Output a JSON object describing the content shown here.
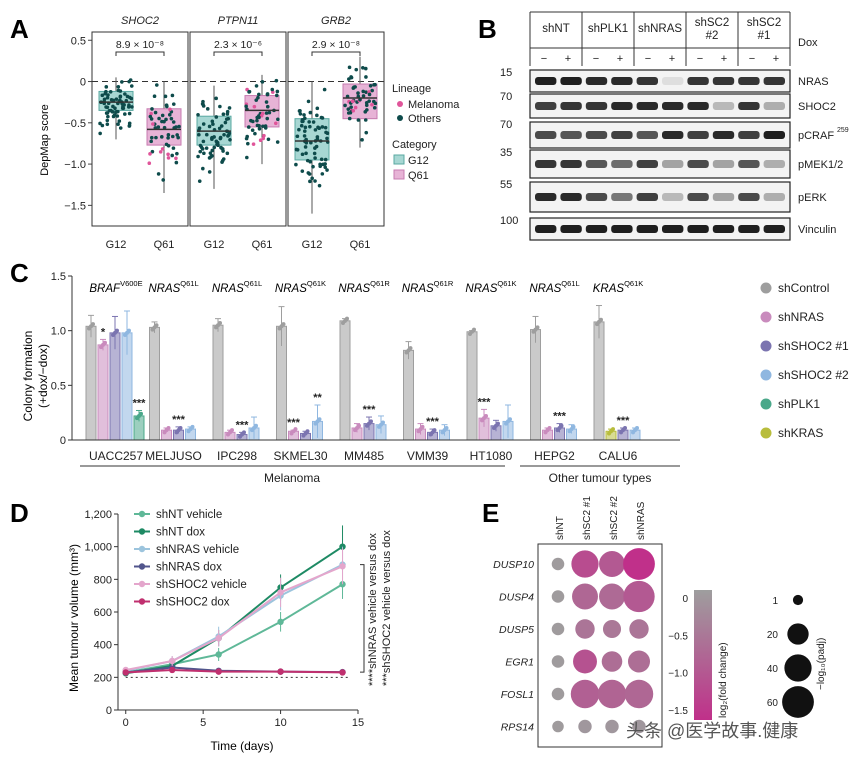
{
  "colors": {
    "g12": "#a7d7d3",
    "g12_stroke": "#5aa8a2",
    "q61": "#e7b3d6",
    "q61_stroke": "#c77bb0",
    "dot_other": "#0e4b4b",
    "dot_melanoma": "#e0559a",
    "shControl": "#9e9e9e",
    "shNRAS": "#c98bbd",
    "shSHOC2_1": "#7b74b0",
    "shSHOC2_2": "#8fb7e0",
    "shPLK1": "#4aa88a",
    "shKRAS": "#b8bd3c",
    "shNT_vehicle": "#5fb898",
    "shNT_dox": "#1e8a64",
    "shNRAS_vehicle": "#9cc4dd",
    "shNRAS_dox": "#51558c",
    "shSHOC2_vehicle": "#e4a6cc",
    "shSHOC2_dox": "#c0306f",
    "heat_top": "#9e9e9e",
    "heat_bottom": "#c0308a"
  },
  "panel_labels": {
    "a": "A",
    "b": "B",
    "c": "C",
    "d": "D",
    "e": "E"
  },
  "panelA": {
    "ylabel": "DepMap score",
    "yticks": [
      "0.5",
      "0",
      "−0.5",
      "−1.0",
      "−1.5"
    ],
    "genes": [
      "SHOC2",
      "PTPN11",
      "GRB2"
    ],
    "pvalues": [
      "8.9 × 10⁻⁸",
      "2.3 × 10⁻⁶",
      "2.9 × 10⁻⁸"
    ],
    "xticks": [
      "G12",
      "Q61"
    ],
    "legend": {
      "lineage_title": "Lineage",
      "melanoma": "Melanoma",
      "others": "Others",
      "category_title": "Category",
      "g12": "G12",
      "q61": "Q61"
    },
    "chart_data": {
      "type": "box",
      "ylim": [
        -1.75,
        0.6
      ],
      "groups": [
        {
          "gene": "SHOC2",
          "category": "G12",
          "q1": -0.35,
          "median": -0.25,
          "q3": -0.12,
          "whisker_low": -0.7,
          "whisker_high": 0.05
        },
        {
          "gene": "SHOC2",
          "category": "Q61",
          "q1": -0.77,
          "median": -0.58,
          "q3": -0.33,
          "whisker_low": -1.35,
          "whisker_high": 0.0
        },
        {
          "gene": "PTPN11",
          "category": "G12",
          "q1": -0.77,
          "median": -0.6,
          "q3": -0.42,
          "whisker_low": -1.3,
          "whisker_high": -0.05
        },
        {
          "gene": "PTPN11",
          "category": "Q61",
          "q1": -0.55,
          "median": -0.35,
          "q3": -0.17,
          "whisker_low": -1.0,
          "whisker_high": 0.08
        },
        {
          "gene": "GRB2",
          "category": "G12",
          "q1": -0.95,
          "median": -0.72,
          "q3": -0.45,
          "whisker_low": -1.6,
          "whisker_high": 0.0
        },
        {
          "gene": "GRB2",
          "category": "Q61",
          "q1": -0.45,
          "median": -0.2,
          "q3": -0.03,
          "whisker_low": -0.8,
          "whisker_high": 0.3
        }
      ]
    }
  },
  "panelB": {
    "conditions": [
      "shNT",
      "shPLK1",
      "shNRAS",
      "shSC2\n#2",
      "shSC2\n#1"
    ],
    "dox_label": "Dox",
    "dox_signs": [
      "−",
      "+"
    ],
    "rows": [
      {
        "label": "NRAS",
        "sup": "",
        "mw": "15"
      },
      {
        "label": "SHOC2",
        "sup": "",
        "mw": "70"
      },
      {
        "label": "pCRAF",
        "sup": "259",
        "mw": "70"
      },
      {
        "label": "pMEK1/2",
        "sup": "",
        "mw": "35"
      },
      {
        "label": "pERK",
        "sup": "",
        "mw": "55"
      },
      {
        "label": "Vinculin",
        "sup": "",
        "mw": "100"
      }
    ],
    "band_intensity": [
      [
        0.95,
        0.95,
        0.9,
        0.9,
        0.85,
        0.08,
        0.85,
        0.85,
        0.85,
        0.85
      ],
      [
        0.8,
        0.85,
        0.85,
        0.9,
        0.9,
        0.9,
        0.9,
        0.25,
        0.85,
        0.3
      ],
      [
        0.75,
        0.7,
        0.75,
        0.8,
        0.7,
        0.9,
        0.8,
        0.9,
        0.8,
        0.95
      ],
      [
        0.85,
        0.85,
        0.7,
        0.6,
        0.8,
        0.35,
        0.75,
        0.35,
        0.7,
        0.3
      ],
      [
        0.9,
        0.9,
        0.75,
        0.55,
        0.8,
        0.25,
        0.75,
        0.35,
        0.75,
        0.3
      ],
      [
        0.95,
        0.95,
        0.95,
        0.95,
        0.95,
        0.95,
        0.95,
        0.95,
        0.95,
        0.95
      ]
    ]
  },
  "panelC": {
    "ylabel_line1": "Colony formation",
    "ylabel_line2": "(+dox/−dox)",
    "yticks": [
      "1.5",
      "1.0",
      "0.5",
      "0"
    ],
    "group_labels": [
      "Melanoma",
      "Other tumour types"
    ],
    "chart_data": {
      "type": "bar",
      "ylim": [
        0,
        1.5
      ],
      "series_names": [
        "shControl",
        "shNRAS",
        "shSHOC2 #1",
        "shSHOC2 #2",
        "shPLK1",
        "shKRAS"
      ],
      "cell_lines": [
        {
          "name": "UACC257",
          "gene": "BRAF",
          "mut": "V600E",
          "values": [
            {
              "s": 0,
              "v": 1.04,
              "e": 0.1
            },
            {
              "s": 1,
              "v": 0.87,
              "e": 0.05
            },
            {
              "s": 2,
              "v": 0.98,
              "e": 0.15
            },
            {
              "s": 3,
              "v": 0.98,
              "e": 0.2
            },
            {
              "s": 4,
              "v": 0.22,
              "e": 0.05
            }
          ],
          "sig": [
            {
              "s": 1,
              "t": "*"
            },
            {
              "s": 4,
              "t": "***"
            }
          ]
        },
        {
          "name": "MELJUSO",
          "gene": "NRAS",
          "mut": "Q61L",
          "values": [
            {
              "s": 0,
              "v": 1.03,
              "e": 0.05
            },
            {
              "s": 1,
              "v": 0.09,
              "e": 0.02
            },
            {
              "s": 2,
              "v": 0.09,
              "e": 0.03
            },
            {
              "s": 3,
              "v": 0.1,
              "e": 0.02
            }
          ],
          "sig": [
            {
              "s": 2,
              "t": "***"
            }
          ]
        },
        {
          "name": "IPC298",
          "gene": "NRAS",
          "mut": "Q61L",
          "values": [
            {
              "s": 0,
              "v": 1.05,
              "e": 0.06
            },
            {
              "s": 1,
              "v": 0.07,
              "e": 0.02
            },
            {
              "s": 2,
              "v": 0.05,
              "e": 0.02
            },
            {
              "s": 3,
              "v": 0.11,
              "e": 0.1
            }
          ],
          "sig": [
            {
              "s": 2,
              "t": "***"
            }
          ]
        },
        {
          "name": "SKMEL30",
          "gene": "NRAS",
          "mut": "Q61K",
          "values": [
            {
              "s": 0,
              "v": 1.04,
              "e": 0.18
            },
            {
              "s": 1,
              "v": 0.08,
              "e": 0.01
            },
            {
              "s": 2,
              "v": 0.06,
              "e": 0.02
            },
            {
              "s": 3,
              "v": 0.17,
              "e": 0.15
            }
          ],
          "sig": [
            {
              "s": 1,
              "t": "***"
            },
            {
              "s": 3,
              "t": "**"
            }
          ]
        },
        {
          "name": "MM485",
          "gene": "NRAS",
          "mut": "Q61R",
          "values": [
            {
              "s": 0,
              "v": 1.09,
              "e": 0.02
            },
            {
              "s": 1,
              "v": 0.11,
              "e": 0.04
            },
            {
              "s": 2,
              "v": 0.15,
              "e": 0.06
            },
            {
              "s": 3,
              "v": 0.14,
              "e": 0.08
            }
          ],
          "sig": [
            {
              "s": 2,
              "t": "***"
            }
          ]
        },
        {
          "name": "VMM39",
          "gene": "NRAS",
          "mut": "Q61R",
          "values": [
            {
              "s": 0,
              "v": 0.82,
              "e": 0.08
            },
            {
              "s": 1,
              "v": 0.1,
              "e": 0.05
            },
            {
              "s": 2,
              "v": 0.07,
              "e": 0.03
            },
            {
              "s": 3,
              "v": 0.09,
              "e": 0.05
            }
          ],
          "sig": [
            {
              "s": 2,
              "t": "***"
            }
          ]
        },
        {
          "name": "HT1080",
          "gene": "NRAS",
          "mut": "Q61K",
          "values": [
            {
              "s": 0,
              "v": 0.99,
              "e": 0.01
            },
            {
              "s": 1,
              "v": 0.2,
              "e": 0.08
            },
            {
              "s": 2,
              "v": 0.13,
              "e": 0.05
            },
            {
              "s": 3,
              "v": 0.17,
              "e": 0.15
            }
          ],
          "sig": [
            {
              "s": 1,
              "t": "***"
            }
          ]
        },
        {
          "name": "HEPG2",
          "gene": "NRAS",
          "mut": "Q61L",
          "values": [
            {
              "s": 0,
              "v": 1.01,
              "e": 0.12
            },
            {
              "s": 1,
              "v": 0.09,
              "e": 0.02
            },
            {
              "s": 2,
              "v": 0.11,
              "e": 0.04
            },
            {
              "s": 3,
              "v": 0.1,
              "e": 0.04
            }
          ],
          "sig": [
            {
              "s": 2,
              "t": "***"
            }
          ]
        },
        {
          "name": "CALU6",
          "gene": "KRAS",
          "mut": "Q61K",
          "values": [
            {
              "s": 0,
              "v": 1.08,
              "e": 0.15
            },
            {
              "s": 5,
              "v": 0.08,
              "e": 0.02
            },
            {
              "s": 2,
              "v": 0.09,
              "e": 0.02
            },
            {
              "s": 3,
              "v": 0.09,
              "e": 0.02
            }
          ],
          "sig": [
            {
              "s": 2,
              "t": "***"
            }
          ]
        }
      ]
    }
  },
  "panelD": {
    "ylabel": "Mean tumour volume (mm³)",
    "xlabel": "Time (days)",
    "yticks": [
      "1,200",
      "1,000",
      "800",
      "600",
      "400",
      "200",
      "0"
    ],
    "xticks": [
      "0",
      "5",
      "10",
      "15"
    ],
    "annotation1": "****shNRAS vehicle versus dox",
    "annotation2": "***shSHOC2 vehicle versus dox",
    "chart_data": {
      "type": "line",
      "xlim": [
        -0.5,
        15
      ],
      "ylim": [
        0,
        1200
      ],
      "x": [
        0,
        3,
        6,
        10,
        14
      ],
      "series": [
        {
          "name": "shNT vehicle",
          "values": [
            230,
            280,
            340,
            540,
            770
          ],
          "err": [
            15,
            30,
            40,
            60,
            90
          ]
        },
        {
          "name": "shNT dox",
          "values": [
            225,
            270,
            440,
            750,
            1000
          ],
          "err": [
            15,
            30,
            50,
            80,
            130
          ]
        },
        {
          "name": "shNRAS vehicle",
          "values": [
            240,
            300,
            450,
            700,
            890
          ],
          "err": [
            15,
            30,
            60,
            90,
            110
          ]
        },
        {
          "name": "shNRAS dox",
          "values": [
            230,
            260,
            240,
            235,
            232
          ],
          "err": [
            10,
            15,
            10,
            10,
            10
          ]
        },
        {
          "name": "shSHOC2 vehicle",
          "values": [
            245,
            300,
            440,
            720,
            880
          ],
          "err": [
            15,
            30,
            50,
            90,
            110
          ]
        },
        {
          "name": "shSHOC2 dox",
          "values": [
            230,
            245,
            235,
            235,
            230
          ],
          "err": [
            10,
            10,
            10,
            10,
            10
          ]
        }
      ]
    }
  },
  "panelE": {
    "columns": [
      "shNT",
      "shSC2 #1",
      "shSC2 #2",
      "shNRAS"
    ],
    "genes": [
      "DUSP10",
      "DUSP4",
      "DUSP5",
      "EGR1",
      "FOSL1",
      "RPS14"
    ],
    "colorbar_ticks": [
      "0",
      "−0.5",
      "−1.0",
      "−1.5"
    ],
    "colorbar_label": "log₂(fold change)",
    "size_ticks": [
      "1",
      "20",
      "40",
      "60"
    ],
    "size_label": "−log₁₀(padj)",
    "chart_data": {
      "type": "dot",
      "values": [
        [
          {
            "fc": -0.05,
            "p": 3
          },
          {
            "fc": -1.2,
            "p": 40
          },
          {
            "fc": -1.0,
            "p": 35
          },
          {
            "fc": -1.6,
            "p": 60
          }
        ],
        [
          {
            "fc": -0.05,
            "p": 3
          },
          {
            "fc": -0.8,
            "p": 35
          },
          {
            "fc": -0.75,
            "p": 35
          },
          {
            "fc": -1.0,
            "p": 58
          }
        ],
        [
          {
            "fc": -0.05,
            "p": 3
          },
          {
            "fc": -0.6,
            "p": 15
          },
          {
            "fc": -0.55,
            "p": 12
          },
          {
            "fc": -0.6,
            "p": 15
          }
        ],
        [
          {
            "fc": -0.05,
            "p": 3
          },
          {
            "fc": -1.1,
            "p": 28
          },
          {
            "fc": -0.7,
            "p": 18
          },
          {
            "fc": -0.7,
            "p": 22
          }
        ],
        [
          {
            "fc": -0.05,
            "p": 3
          },
          {
            "fc": -0.9,
            "p": 45
          },
          {
            "fc": -0.85,
            "p": 45
          },
          {
            "fc": -0.8,
            "p": 45
          }
        ],
        [
          {
            "fc": -0.05,
            "p": 2
          },
          {
            "fc": -0.1,
            "p": 4
          },
          {
            "fc": -0.1,
            "p": 4
          },
          {
            "fc": -0.1,
            "p": 4
          }
        ]
      ]
    }
  },
  "watermark": "头条 @医学故事.健康"
}
